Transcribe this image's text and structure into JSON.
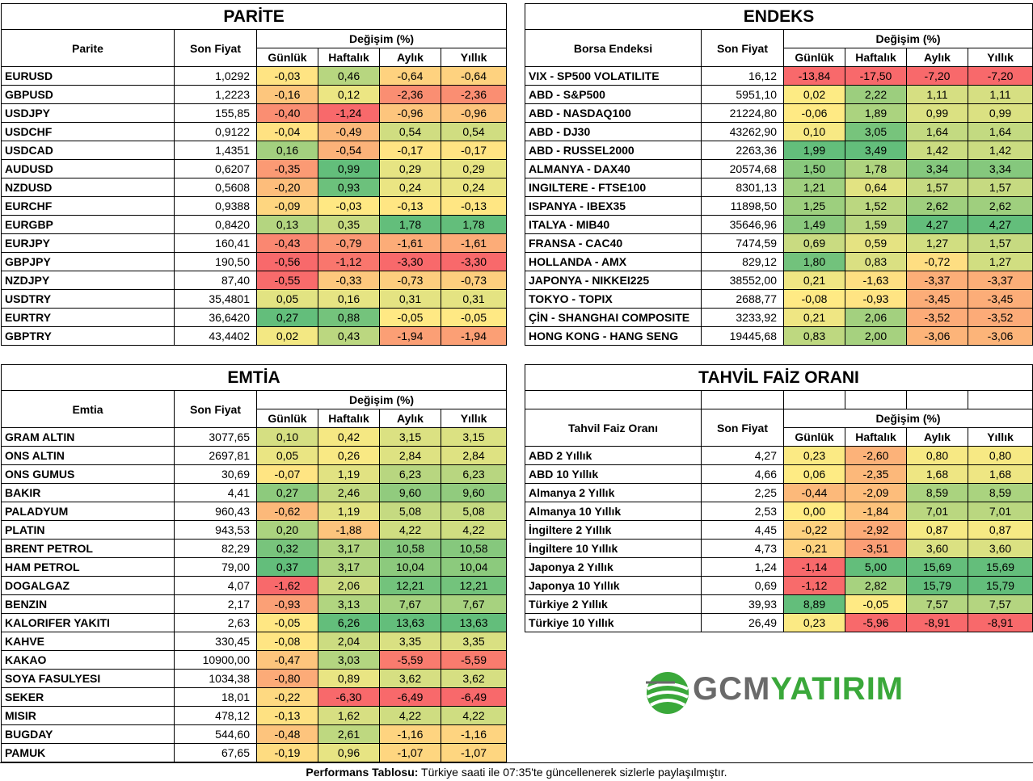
{
  "parite": {
    "title": "PARİTE",
    "col_name": "Parite",
    "col_price": "Son Fiyat",
    "col_change": "Değişim (%)",
    "periods": [
      "Günlük",
      "Haftalık",
      "Aylık",
      "Yıllık"
    ],
    "rows": [
      {
        "name": "EURUSD",
        "price": "1,0292",
        "d": "-0,03",
        "w": "0,46",
        "m": "-0,64",
        "y": "-0,64"
      },
      {
        "name": "GBPUSD",
        "price": "1,2223",
        "d": "-0,16",
        "w": "0,12",
        "m": "-2,36",
        "y": "-2,36"
      },
      {
        "name": "USDJPY",
        "price": "155,85",
        "d": "-0,40",
        "w": "-1,24",
        "m": "-0,96",
        "y": "-0,96"
      },
      {
        "name": "USDCHF",
        "price": "0,9122",
        "d": "-0,04",
        "w": "-0,49",
        "m": "0,54",
        "y": "0,54"
      },
      {
        "name": "USDCAD",
        "price": "1,4351",
        "d": "0,16",
        "w": "-0,54",
        "m": "-0,17",
        "y": "-0,17"
      },
      {
        "name": "AUDUSD",
        "price": "0,6207",
        "d": "-0,35",
        "w": "0,99",
        "m": "0,29",
        "y": "0,29"
      },
      {
        "name": "NZDUSD",
        "price": "0,5608",
        "d": "-0,20",
        "w": "0,93",
        "m": "0,24",
        "y": "0,24"
      },
      {
        "name": "EURCHF",
        "price": "0,9388",
        "d": "-0,09",
        "w": "-0,03",
        "m": "-0,13",
        "y": "-0,13"
      },
      {
        "name": "EURGBP",
        "price": "0,8420",
        "d": "0,13",
        "w": "0,35",
        "m": "1,78",
        "y": "1,78"
      },
      {
        "name": "EURJPY",
        "price": "160,41",
        "d": "-0,43",
        "w": "-0,79",
        "m": "-1,61",
        "y": "-1,61"
      },
      {
        "name": "GBPJPY",
        "price": "190,50",
        "d": "-0,56",
        "w": "-1,12",
        "m": "-3,30",
        "y": "-3,30"
      },
      {
        "name": "NZDJPY",
        "price": "87,40",
        "d": "-0,55",
        "w": "-0,33",
        "m": "-0,73",
        "y": "-0,73"
      },
      {
        "name": "USDTRY",
        "price": "35,4801",
        "d": "0,05",
        "w": "0,16",
        "m": "0,31",
        "y": "0,31"
      },
      {
        "name": "EURTRY",
        "price": "36,6420",
        "d": "0,27",
        "w": "0,88",
        "m": "-0,05",
        "y": "-0,05"
      },
      {
        "name": "GBPTRY",
        "price": "43,4402",
        "d": "0,02",
        "w": "0,43",
        "m": "-1,94",
        "y": "-1,94"
      }
    ]
  },
  "endeks": {
    "title": "ENDEKS",
    "col_name": "Borsa Endeksi",
    "col_price": "Son Fiyat",
    "col_change": "Değişim (%)",
    "periods": [
      "Günlük",
      "Haftalık",
      "Aylık",
      "Yıllık"
    ],
    "rows": [
      {
        "name": "VIX  - SP500 VOLATILITE",
        "price": "16,12",
        "d": "-13,84",
        "w": "-17,50",
        "m": "-7,20",
        "y": "-7,20"
      },
      {
        "name": "ABD - S&P500",
        "price": "5951,10",
        "d": "0,02",
        "w": "2,22",
        "m": "1,11",
        "y": "1,11"
      },
      {
        "name": "ABD - NASDAQ100",
        "price": "21224,80",
        "d": "-0,06",
        "w": "1,89",
        "m": "0,99",
        "y": "0,99"
      },
      {
        "name": "ABD - DJ30",
        "price": "43262,90",
        "d": "0,10",
        "w": "3,05",
        "m": "1,64",
        "y": "1,64"
      },
      {
        "name": "ABD - RUSSEL2000",
        "price": "2263,36",
        "d": "1,99",
        "w": "3,49",
        "m": "1,42",
        "y": "1,42"
      },
      {
        "name": "ALMANYA - DAX40",
        "price": "20574,68",
        "d": "1,50",
        "w": "1,78",
        "m": "3,34",
        "y": "3,34"
      },
      {
        "name": "INGILTERE - FTSE100",
        "price": "8301,13",
        "d": "1,21",
        "w": "0,64",
        "m": "1,57",
        "y": "1,57"
      },
      {
        "name": "ISPANYA - IBEX35",
        "price": "11898,50",
        "d": "1,25",
        "w": "1,52",
        "m": "2,62",
        "y": "2,62"
      },
      {
        "name": "ITALYA - MIB40",
        "price": "35646,96",
        "d": "1,49",
        "w": "1,59",
        "m": "4,27",
        "y": "4,27"
      },
      {
        "name": "FRANSA - CAC40",
        "price": "7474,59",
        "d": "0,69",
        "w": "0,59",
        "m": "1,27",
        "y": "1,57"
      },
      {
        "name": "HOLLANDA - AMX",
        "price": "829,12",
        "d": "1,80",
        "w": "0,83",
        "m": "-0,72",
        "y": "1,27"
      },
      {
        "name": "JAPONYA - NIKKEI225",
        "price": "38552,00",
        "d": "0,21",
        "w": "-1,63",
        "m": "-3,37",
        "y": "-3,37"
      },
      {
        "name": "TOKYO - TOPIX",
        "price": "2688,77",
        "d": "-0,08",
        "w": "-0,93",
        "m": "-3,45",
        "y": "-3,45"
      },
      {
        "name": "ÇİN - SHANGHAI COMPOSITE",
        "price": "3233,92",
        "d": "0,21",
        "w": "2,06",
        "m": "-3,52",
        "y": "-3,52"
      },
      {
        "name": "HONG KONG - HANG SENG",
        "price": "19445,68",
        "d": "0,83",
        "w": "2,00",
        "m": "-3,06",
        "y": "-3,06"
      }
    ]
  },
  "emtia": {
    "title": "EMTİA",
    "col_name": "Emtia",
    "col_price": "Son Fiyat",
    "col_change": "Değişim (%)",
    "periods": [
      "Günlük",
      "Haftalık",
      "Aylık",
      "Yıllık"
    ],
    "rows": [
      {
        "name": "GRAM ALTIN",
        "price": "3077,65",
        "d": "0,10",
        "w": "0,42",
        "m": "3,15",
        "y": "3,15"
      },
      {
        "name": "ONS ALTIN",
        "price": "2697,81",
        "d": "0,05",
        "w": "0,26",
        "m": "2,84",
        "y": "2,84"
      },
      {
        "name": "ONS GUMUS",
        "price": "30,69",
        "d": "-0,07",
        "w": "1,19",
        "m": "6,23",
        "y": "6,23"
      },
      {
        "name": "BAKIR",
        "price": "4,41",
        "d": "0,27",
        "w": "2,46",
        "m": "9,60",
        "y": "9,60"
      },
      {
        "name": "PALADYUM",
        "price": "960,43",
        "d": "-0,62",
        "w": "1,19",
        "m": "5,08",
        "y": "5,08"
      },
      {
        "name": "PLATIN",
        "price": "943,53",
        "d": "0,20",
        "w": "-1,88",
        "m": "4,22",
        "y": "4,22"
      },
      {
        "name": "BRENT PETROL",
        "price": "82,29",
        "d": "0,32",
        "w": "3,17",
        "m": "10,58",
        "y": "10,58"
      },
      {
        "name": "HAM PETROL",
        "price": "79,00",
        "d": "0,37",
        "w": "3,17",
        "m": "10,04",
        "y": "10,04"
      },
      {
        "name": "DOGALGAZ",
        "price": "4,07",
        "d": "-1,62",
        "w": "2,06",
        "m": "12,21",
        "y": "12,21"
      },
      {
        "name": "BENZIN",
        "price": "2,17",
        "d": "-0,93",
        "w": "3,13",
        "m": "7,67",
        "y": "7,67"
      },
      {
        "name": "KALORIFER YAKITI",
        "price": "2,63",
        "d": "-0,05",
        "w": "6,26",
        "m": "13,63",
        "y": "13,63"
      },
      {
        "name": "KAHVE",
        "price": "330,45",
        "d": "-0,08",
        "w": "2,04",
        "m": "3,35",
        "y": "3,35"
      },
      {
        "name": "KAKAO",
        "price": "10900,00",
        "d": "-0,47",
        "w": "3,03",
        "m": "-5,59",
        "y": "-5,59"
      },
      {
        "name": "SOYA FASULYESI",
        "price": "1034,38",
        "d": "-0,80",
        "w": "0,89",
        "m": "3,62",
        "y": "3,62"
      },
      {
        "name": "SEKER",
        "price": "18,01",
        "d": "-0,22",
        "w": "-6,30",
        "m": "-6,49",
        "y": "-6,49"
      },
      {
        "name": "MISIR",
        "price": "478,12",
        "d": "-0,13",
        "w": "1,62",
        "m": "4,22",
        "y": "4,22"
      },
      {
        "name": "BUGDAY",
        "price": "544,60",
        "d": "-0,48",
        "w": "2,61",
        "m": "-1,16",
        "y": "-1,16"
      },
      {
        "name": "PAMUK",
        "price": "67,65",
        "d": "-0,19",
        "w": "0,96",
        "m": "-1,07",
        "y": "-1,07"
      }
    ]
  },
  "tahvil": {
    "title": "TAHVİL FAİZ ORANI",
    "col_name": "Tahvil Faiz Oranı",
    "col_price": "Son Fiyat",
    "col_change": "Değişim (%)",
    "periods": [
      "Günlük",
      "Haftalık",
      "Aylık",
      "Yıllık"
    ],
    "rows": [
      {
        "name": "ABD 2 Yıllık",
        "price": "4,27",
        "d": "0,23",
        "w": "-2,60",
        "m": "0,80",
        "y": "0,80"
      },
      {
        "name": "ABD 10 Yıllık",
        "price": "4,66",
        "d": "0,06",
        "w": "-2,35",
        "m": "1,68",
        "y": "1,68"
      },
      {
        "name": "Almanya 2 Yıllık",
        "price": "2,25",
        "d": "-0,44",
        "w": "-2,09",
        "m": "8,59",
        "y": "8,59"
      },
      {
        "name": "Almanya 10 Yıllık",
        "price": "2,53",
        "d": "0,00",
        "w": "-1,84",
        "m": "7,01",
        "y": "7,01"
      },
      {
        "name": "İngiltere 2 Yıllık",
        "price": "4,45",
        "d": "-0,22",
        "w": "-2,92",
        "m": "0,87",
        "y": "0,87"
      },
      {
        "name": "İngiltere 10 Yıllık",
        "price": "4,73",
        "d": "-0,21",
        "w": "-3,51",
        "m": "3,60",
        "y": "3,60"
      },
      {
        "name": "Japonya 2 Yıllık",
        "price": "1,24",
        "d": "-1,14",
        "w": "5,00",
        "m": "15,69",
        "y": "15,69"
      },
      {
        "name": "Japonya 10 Yıllık",
        "price": "0,69",
        "d": "-1,12",
        "w": "2,82",
        "m": "15,79",
        "y": "15,79"
      },
      {
        "name": "Türkiye 2 Yıllık",
        "price": "39,93",
        "d": "8,89",
        "w": "-0,05",
        "m": "7,57",
        "y": "7,57"
      },
      {
        "name": "Türkiye 10 Yıllık",
        "price": "26,49",
        "d": "0,23",
        "w": "-5,96",
        "m": "-8,91",
        "y": "-8,91"
      }
    ]
  },
  "logo": {
    "part1": "GCM",
    "part2": "YATIRIM"
  },
  "footer": {
    "bold": "Performans Tablosu:",
    "text": " Türkiye saati ile 07:35'te güncellenerek sizlerle paylaşılmıştır."
  },
  "colors": {
    "green": "#63be7b",
    "yellow": "#ffeb84",
    "red": "#f8696b"
  }
}
